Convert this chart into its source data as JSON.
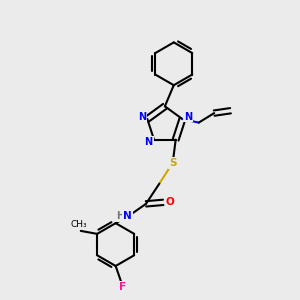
{
  "bg_color": "#ebebeb",
  "atom_colors": {
    "N": "#0000ff",
    "O": "#ff0000",
    "S": "#ccaa00",
    "F": "#ff1493",
    "H": "#777777",
    "C": "#000000"
  }
}
